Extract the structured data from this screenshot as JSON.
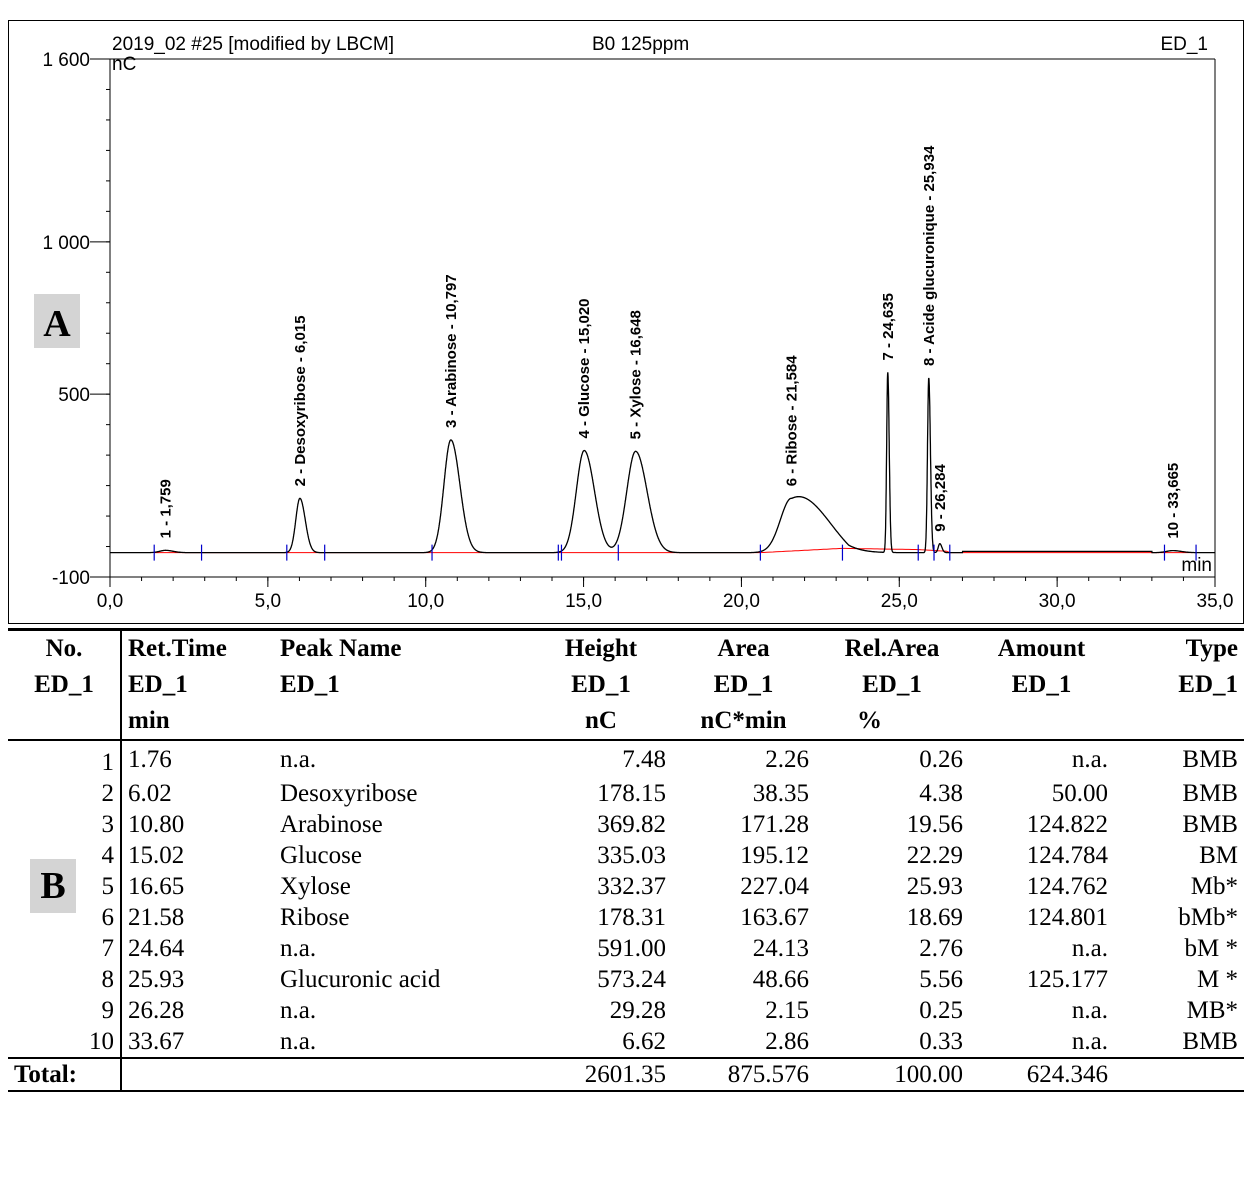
{
  "chart_data": {
    "type": "line",
    "header": {
      "left": "2019_02 #25 [modified by LBCM]",
      "center": "B0 125ppm",
      "right": "ED_1"
    },
    "ylabel": "nC",
    "xlabel": "min",
    "xlim": [
      0,
      35
    ],
    "ylim": [
      -100,
      1600
    ],
    "x_ticks": [
      "0,0",
      "5,0",
      "10,0",
      "15,0",
      "20,0",
      "25,0",
      "30,0",
      "35,0"
    ],
    "y_ticks": [
      {
        "value": 1600,
        "label": "1 600"
      },
      {
        "value": 1000,
        "label": "1 000"
      },
      {
        "value": 500,
        "label": "500"
      },
      {
        "value": -100,
        "label": "-100"
      }
    ],
    "baseline": -20,
    "peaks": [
      {
        "rt": 1.759,
        "height": 7.48,
        "width": 0.18,
        "label": "1 - 1,759"
      },
      {
        "rt": 6.015,
        "height": 178.15,
        "width": 0.13,
        "label": "2 - Desoxyribose - 6,015"
      },
      {
        "rt": 10.797,
        "height": 369.82,
        "width": 0.22,
        "label": "3 - Arabinose - 10,797"
      },
      {
        "rt": 15.02,
        "height": 335.03,
        "width": 0.25,
        "label": "4 - Glucose - 15,020"
      },
      {
        "rt": 16.648,
        "height": 332.37,
        "width": 0.28,
        "label": "5 - Xylose - 16,648"
      },
      {
        "rt": 21.584,
        "height": 178.31,
        "width": 0.35,
        "label": "6 - Ribose - 21,584"
      },
      {
        "rt": 24.635,
        "height": 591.0,
        "width": 0.035,
        "label": "7 - 24,635"
      },
      {
        "rt": 25.934,
        "height": 573.24,
        "width": 0.04,
        "label": "8 - Acide glucuronique - 25,934"
      },
      {
        "rt": 26.284,
        "height": 29.28,
        "width": 0.05,
        "label": "9 - 26,284"
      },
      {
        "rt": 33.665,
        "height": 6.62,
        "width": 0.2,
        "label": "10 - 33,665"
      }
    ],
    "integration_marks": [
      1.4,
      2.9,
      5.6,
      6.8,
      10.2,
      14.2,
      14.3,
      16.1,
      20.6,
      23.2,
      25.6,
      26.1,
      26.6,
      33.4,
      34.4
    ],
    "colors": {
      "signal": "#000000",
      "baseline": "#ff0000",
      "marks": "#0000cc"
    }
  },
  "panel_labels": {
    "a": "A",
    "b": "B"
  },
  "table": {
    "headers": [
      [
        "No.",
        "ED_1",
        ""
      ],
      [
        "Ret.Time",
        "ED_1",
        "min"
      ],
      [
        "Peak Name",
        "ED_1",
        ""
      ],
      [
        "Height",
        "ED_1",
        "nC"
      ],
      [
        "Area",
        "ED_1",
        "nC*min"
      ],
      [
        "Rel.Area",
        "ED_1",
        "%"
      ],
      [
        "Amount",
        "ED_1",
        ""
      ],
      [
        "Type",
        "ED_1",
        ""
      ]
    ],
    "rows": [
      [
        "1",
        "1.76",
        "n.a.",
        "7.48",
        "2.26",
        "0.26",
        "n.a.",
        "BMB"
      ],
      [
        "2",
        "6.02",
        "Desoxyribose",
        "178.15",
        "38.35",
        "4.38",
        "50.00",
        "BMB"
      ],
      [
        "3",
        "10.80",
        "Arabinose",
        "369.82",
        "171.28",
        "19.56",
        "124.822",
        "BMB"
      ],
      [
        "4",
        "15.02",
        "Glucose",
        "335.03",
        "195.12",
        "22.29",
        "124.784",
        "BM"
      ],
      [
        "5",
        "16.65",
        "Xylose",
        "332.37",
        "227.04",
        "25.93",
        "124.762",
        "Mb*"
      ],
      [
        "6",
        "21.58",
        "Ribose",
        "178.31",
        "163.67",
        "18.69",
        "124.801",
        "bMb*"
      ],
      [
        "7",
        "24.64",
        "n.a.",
        "591.00",
        "24.13",
        "2.76",
        "n.a.",
        "bM *"
      ],
      [
        "8",
        "25.93",
        "Glucuronic acid",
        "573.24",
        "48.66",
        "5.56",
        "125.177",
        "M *"
      ],
      [
        "9",
        "26.28",
        "n.a.",
        "29.28",
        "2.15",
        "0.25",
        "n.a.",
        "MB*"
      ],
      [
        "10",
        "33.67",
        "n.a.",
        "6.62",
        "2.86",
        "0.33",
        "n.a.",
        "BMB"
      ]
    ],
    "total": {
      "label": "Total:",
      "height": "2601.35",
      "area": "875.576",
      "rel_area": "100.00",
      "amount": "624.346"
    }
  }
}
